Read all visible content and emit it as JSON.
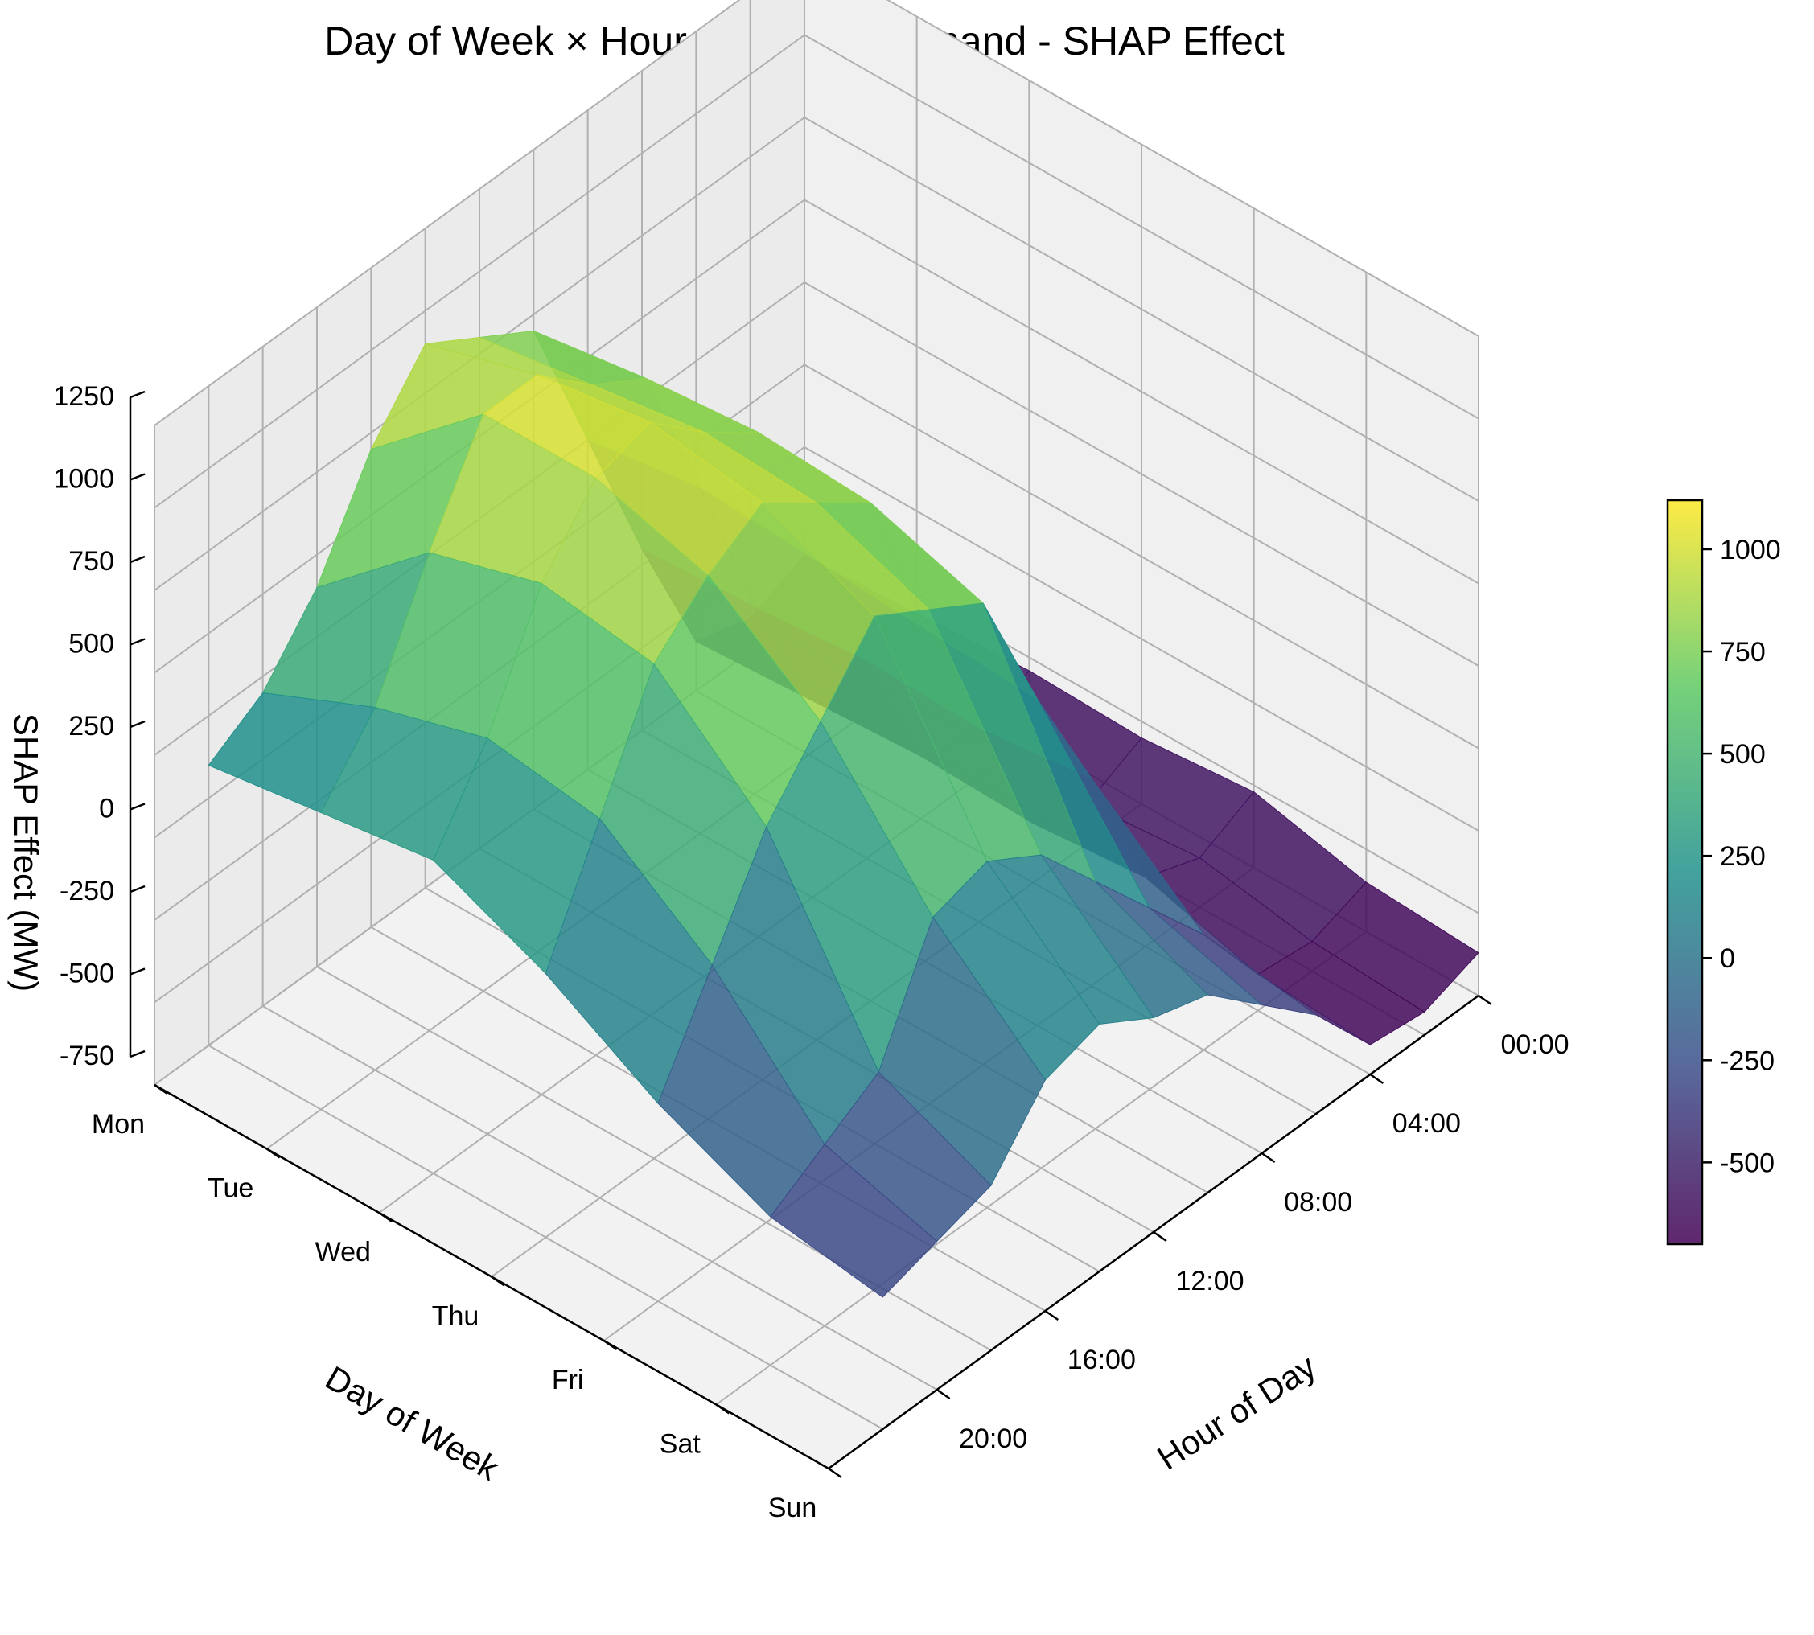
{
  "chart_data": {
    "type": "surface3d",
    "title": "Day of Week × Hour → Power Demand - SHAP Effect",
    "xlabel": "Hour of Day",
    "ylabel": "Day of Week",
    "zlabel": "SHAP Effect (MW)",
    "hour_ticks": [
      "00:00",
      "04:00",
      "08:00",
      "12:00",
      "16:00",
      "20:00"
    ],
    "day_ticks": [
      "Mon",
      "Tue",
      "Wed",
      "Thu",
      "Fri",
      "Sat",
      "Sun"
    ],
    "z_ticks": [
      "-750",
      "-500",
      "-250",
      "0",
      "250",
      "500",
      "750",
      "1000",
      "1250"
    ],
    "zlim": [
      -750,
      1250
    ],
    "colorbar_ticks": [
      "-500",
      "-250",
      "0",
      "250",
      "500",
      "750",
      "1000"
    ],
    "colorbar_range": [
      -700,
      1120
    ],
    "colormap": [
      "#440154",
      "#3b528b",
      "#21918c",
      "#5ec962",
      "#fde725"
    ],
    "hours": [
      0,
      2,
      4,
      6,
      8,
      10,
      12,
      14,
      16,
      18,
      20,
      22
    ],
    "days": [
      "Mon",
      "Tue",
      "Wed",
      "Thu",
      "Fri",
      "Sat",
      "Sun"
    ],
    "z_values": [
      [
        -580,
        -650,
        -600,
        -200,
        250,
        700,
        800,
        900,
        700,
        400,
        200,
        100
      ],
      [
        -560,
        -640,
        -580,
        -180,
        300,
        750,
        850,
        1000,
        1000,
        700,
        350,
        150
      ],
      [
        -540,
        -620,
        -560,
        -150,
        280,
        780,
        900,
        1050,
        1000,
        800,
        450,
        200
      ],
      [
        -550,
        -630,
        -570,
        -160,
        260,
        760,
        880,
        1000,
        900,
        750,
        400,
        50
      ],
      [
        -520,
        -600,
        -540,
        -120,
        240,
        650,
        750,
        850,
        650,
        450,
        150,
        -150
      ],
      [
        -600,
        -660,
        -640,
        -400,
        -200,
        0,
        200,
        300,
        250,
        -100,
        -200,
        -300
      ],
      [
        -620,
        -680,
        -660,
        -450,
        -300,
        -150,
        -100,
        0,
        -50,
        -250,
        -300,
        -350
      ]
    ]
  }
}
